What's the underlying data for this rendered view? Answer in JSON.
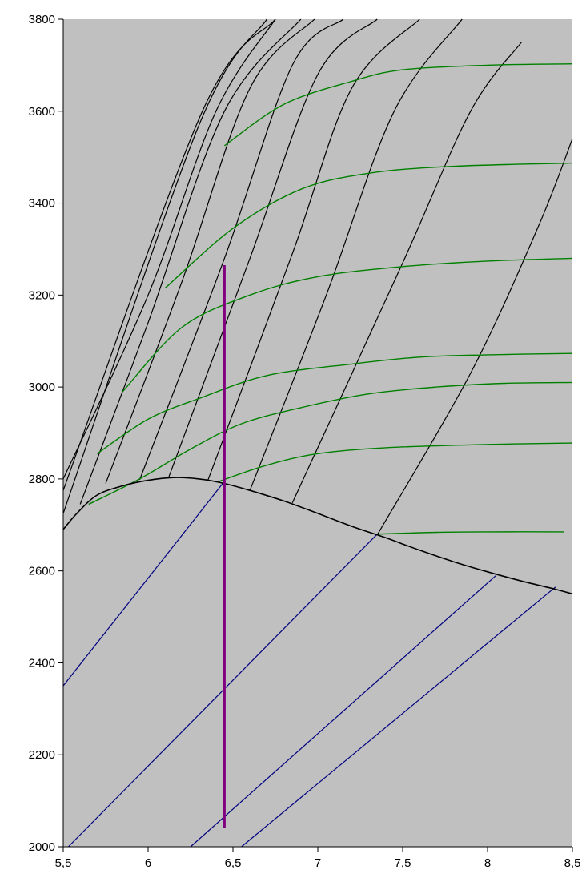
{
  "chart_data": {
    "type": "line",
    "title": "",
    "xlabel": "",
    "ylabel": "",
    "xlim": [
      5.5,
      8.5
    ],
    "ylim": [
      2000,
      3800
    ],
    "grid": false,
    "x_ticks": [
      {
        "value": 5.5,
        "label": "5,5"
      },
      {
        "value": 6.0,
        "label": "6"
      },
      {
        "value": 6.5,
        "label": "6,5"
      },
      {
        "value": 7.0,
        "label": "7"
      },
      {
        "value": 7.5,
        "label": "7,5"
      },
      {
        "value": 8.0,
        "label": "8"
      },
      {
        "value": 8.5,
        "label": "8,5"
      }
    ],
    "y_ticks": [
      {
        "value": 2000,
        "label": "2000"
      },
      {
        "value": 2200,
        "label": "2200"
      },
      {
        "value": 2400,
        "label": "2400"
      },
      {
        "value": 2600,
        "label": "2600"
      },
      {
        "value": 2800,
        "label": "2800"
      },
      {
        "value": 3000,
        "label": "3000"
      },
      {
        "value": 3200,
        "label": "3200"
      },
      {
        "value": 3400,
        "label": "3400"
      },
      {
        "value": 3600,
        "label": "3600"
      },
      {
        "value": 3800,
        "label": "3800"
      }
    ],
    "colors": {
      "plot_background": "#c0c0c0",
      "saturation_curve": "#000000",
      "isobars": "#000000",
      "isotherms": "#008000",
      "wet_region_lines": "#000080",
      "process_line": "#800080"
    },
    "saturation_curve": [
      [
        5.5,
        2690
      ],
      [
        5.58,
        2725
      ],
      [
        5.7,
        2765
      ],
      [
        5.85,
        2785
      ],
      [
        6.0,
        2797
      ],
      [
        6.15,
        2803
      ],
      [
        6.3,
        2800
      ],
      [
        6.45,
        2790
      ],
      [
        6.6,
        2775
      ],
      [
        6.8,
        2752
      ],
      [
        7.0,
        2725
      ],
      [
        7.2,
        2697
      ],
      [
        7.4,
        2672
      ],
      [
        7.6,
        2645
      ],
      [
        7.8,
        2620
      ],
      [
        8.0,
        2598
      ],
      [
        8.2,
        2578
      ],
      [
        8.4,
        2560
      ],
      [
        8.5,
        2550
      ]
    ],
    "isobars": [
      [
        [
          5.5,
          2725
        ],
        [
          6.3,
          3570
        ],
        [
          6.7,
          3800
        ]
      ],
      [
        [
          5.5,
          2775
        ],
        [
          6.32,
          3600
        ],
        [
          6.75,
          3800
        ]
      ],
      [
        [
          5.5,
          2800
        ],
        [
          6.0,
          3200
        ],
        [
          6.4,
          3600
        ],
        [
          6.75,
          3800
        ]
      ],
      [
        [
          5.6,
          2745
        ],
        [
          6.0,
          3140
        ],
        [
          6.45,
          3600
        ],
        [
          6.9,
          3800
        ]
      ],
      [
        [
          5.75,
          2790
        ],
        [
          6.2,
          3230
        ],
        [
          6.6,
          3650
        ],
        [
          6.98,
          3800
        ]
      ],
      [
        [
          5.95,
          2798
        ],
        [
          6.45,
          3280
        ],
        [
          6.85,
          3700
        ],
        [
          7.15,
          3800
        ]
      ],
      [
        [
          6.12,
          2802
        ],
        [
          6.6,
          3280
        ],
        [
          7.0,
          3680
        ],
        [
          7.35,
          3800
        ]
      ],
      [
        [
          6.35,
          2795
        ],
        [
          6.85,
          3290
        ],
        [
          7.2,
          3650
        ],
        [
          7.6,
          3800
        ]
      ],
      [
        [
          6.6,
          2775
        ],
        [
          7.05,
          3200
        ],
        [
          7.45,
          3600
        ],
        [
          7.85,
          3800
        ]
      ],
      [
        [
          6.85,
          2748
        ],
        [
          7.5,
          3270
        ],
        [
          7.9,
          3600
        ],
        [
          8.2,
          3750
        ]
      ],
      [
        [
          7.35,
          2678
        ],
        [
          7.9,
          3030
        ],
        [
          8.3,
          3350
        ],
        [
          8.5,
          3540
        ]
      ]
    ],
    "isotherms": [
      [
        [
          6.45,
          3525
        ],
        [
          6.8,
          3615
        ],
        [
          7.2,
          3665
        ],
        [
          7.5,
          3690
        ],
        [
          8.0,
          3700
        ],
        [
          8.5,
          3703
        ]
      ],
      [
        [
          6.1,
          3215
        ],
        [
          6.5,
          3345
        ],
        [
          6.9,
          3430
        ],
        [
          7.3,
          3465
        ],
        [
          7.8,
          3480
        ],
        [
          8.5,
          3487
        ]
      ],
      [
        [
          5.85,
          2990
        ],
        [
          6.2,
          3130
        ],
        [
          6.6,
          3200
        ],
        [
          7.0,
          3240
        ],
        [
          7.5,
          3262
        ],
        [
          8.0,
          3274
        ],
        [
          8.5,
          3280
        ]
      ],
      [
        [
          5.7,
          2855
        ],
        [
          6.0,
          2930
        ],
        [
          6.3,
          2975
        ],
        [
          6.7,
          3025
        ],
        [
          7.2,
          3050
        ],
        [
          7.6,
          3065
        ],
        [
          8.0,
          3070
        ],
        [
          8.5,
          3073
        ]
      ],
      [
        [
          5.65,
          2745
        ],
        [
          5.95,
          2800
        ],
        [
          6.25,
          2865
        ],
        [
          6.55,
          2920
        ],
        [
          6.9,
          2955
        ],
        [
          7.3,
          2985
        ],
        [
          7.7,
          3000
        ],
        [
          8.1,
          3008
        ],
        [
          8.5,
          3010
        ]
      ],
      [
        [
          6.42,
          2795
        ],
        [
          6.7,
          2830
        ],
        [
          7.0,
          2855
        ],
        [
          7.4,
          2868
        ],
        [
          8.0,
          2875
        ],
        [
          8.5,
          2878
        ]
      ],
      [
        [
          7.35,
          2680
        ],
        [
          7.7,
          2684
        ],
        [
          8.0,
          2685
        ],
        [
          8.45,
          2685
        ]
      ]
    ],
    "wet_region_lines": [
      [
        [
          5.5,
          2350
        ],
        [
          6.45,
          2795
        ]
      ],
      [
        [
          5.53,
          2000
        ],
        [
          7.35,
          2680
        ]
      ],
      [
        [
          6.25,
          2000
        ],
        [
          8.05,
          2590
        ]
      ],
      [
        [
          6.55,
          2000
        ],
        [
          8.4,
          2565
        ]
      ]
    ],
    "process_line": [
      [
        6.45,
        2040
      ],
      [
        6.45,
        3265
      ]
    ]
  }
}
